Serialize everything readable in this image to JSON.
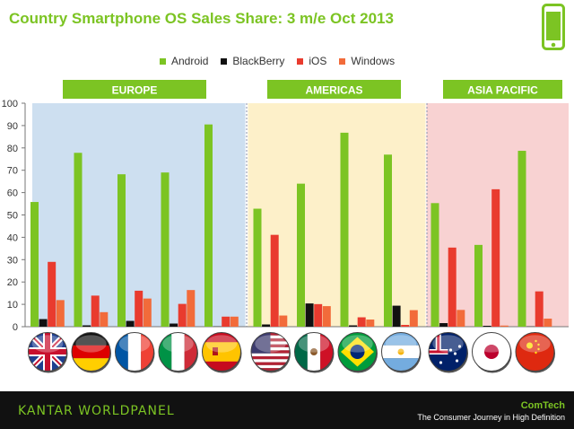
{
  "title": "Country Smartphone OS Sales Share: 3 m/e Oct 2013",
  "footer": {
    "brand": "KANTAR WORLDPANEL",
    "product": "ComTech",
    "tagline": "The Consumer Journey in High Definition"
  },
  "colors": {
    "android": "#7cc423",
    "blackberry": "#111111",
    "ios": "#e93b2e",
    "windows": "#f26b3a",
    "europe_bg": "#cddff0",
    "americas_bg": "#fdf0c9",
    "asia_bg": "#f8d2d2",
    "region_header": "#7cc423"
  },
  "chart_data": {
    "type": "bar",
    "title": "Country Smartphone OS Sales Share: 3 m/e Oct 2013",
    "ylim": [
      0,
      100
    ],
    "yticks": [
      0,
      10,
      20,
      30,
      40,
      50,
      60,
      70,
      80,
      90,
      100
    ],
    "legend_position": "top",
    "regions": [
      {
        "label": "EUROPE",
        "countries": [
          "UK",
          "Germany",
          "France",
          "Italy",
          "Spain"
        ]
      },
      {
        "label": "AMERICAS",
        "countries": [
          "USA",
          "Mexico",
          "Brazil",
          "Argentina"
        ]
      },
      {
        "label": "ASIA PACIFIC",
        "countries": [
          "Australia",
          "Japan",
          "China"
        ]
      }
    ],
    "categories": [
      "UK",
      "Germany",
      "France",
      "Italy",
      "Spain",
      "USA",
      "Mexico",
      "Brazil",
      "Argentina",
      "Australia",
      "Japan",
      "China"
    ],
    "series": [
      {
        "name": "Android",
        "color": "#7cc423",
        "values": [
          55.8,
          77.8,
          68.2,
          69.0,
          90.5,
          52.8,
          64.0,
          86.8,
          77.0,
          55.3,
          36.6,
          78.7
        ]
      },
      {
        "name": "BlackBerry",
        "color": "#111111",
        "values": [
          3.4,
          0.6,
          2.6,
          1.4,
          0.1,
          1.0,
          10.4,
          0.6,
          9.4,
          1.6,
          0.4,
          0.1
        ]
      },
      {
        "name": "iOS",
        "color": "#e93b2e",
        "values": [
          29.0,
          13.9,
          16.1,
          10.2,
          4.5,
          41.1,
          10.1,
          4.2,
          0.8,
          35.4,
          61.5,
          15.8
        ]
      },
      {
        "name": "Windows",
        "color": "#f26b3a",
        "values": [
          11.9,
          6.5,
          12.6,
          16.4,
          4.5,
          5.0,
          9.2,
          3.2,
          7.4,
          7.5,
          0.5,
          3.6
        ]
      }
    ],
    "flags": [
      "uk-flag",
      "germany-flag",
      "france-flag",
      "italy-flag",
      "spain-flag",
      "usa-flag",
      "mexico-flag",
      "brazil-flag",
      "argentina-flag",
      "australia-flag",
      "japan-flag",
      "china-flag"
    ]
  }
}
